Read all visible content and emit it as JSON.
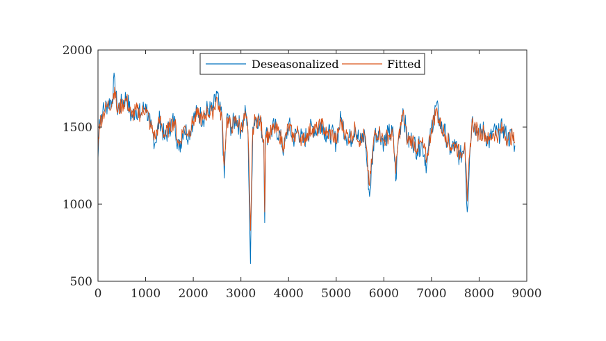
{
  "chart_data": {
    "type": "line",
    "title": "",
    "xlabel": "",
    "ylabel": "",
    "xlim": [
      0,
      9000
    ],
    "ylim": [
      500,
      2000
    ],
    "xticks": [
      0,
      1000,
      2000,
      3000,
      4000,
      5000,
      6000,
      7000,
      8000,
      9000
    ],
    "yticks": [
      500,
      1000,
      1500,
      2000
    ],
    "xtick_labels": [
      "0",
      "1000",
      "2000",
      "3000",
      "4000",
      "5000",
      "6000",
      "7000",
      "8000",
      "9000"
    ],
    "ytick_labels": [
      "500",
      "1000",
      "1500",
      "2000"
    ],
    "legend_position": "top-center",
    "colors": {
      "deseasonalized": "#0072BD",
      "fitted": "#D95319"
    },
    "series": [
      {
        "name": "Deseasonalized",
        "x": [
          0,
          30,
          100,
          200,
          300,
          350,
          400,
          500,
          600,
          700,
          800,
          900,
          1000,
          1100,
          1200,
          1300,
          1400,
          1500,
          1600,
          1700,
          1800,
          1900,
          2000,
          2100,
          2200,
          2300,
          2400,
          2500,
          2550,
          2600,
          2650,
          2700,
          2800,
          2900,
          3000,
          3100,
          3150,
          3200,
          3250,
          3300,
          3400,
          3480,
          3500,
          3520,
          3600,
          3700,
          3800,
          3900,
          4000,
          4100,
          4200,
          4300,
          4400,
          4500,
          4600,
          4700,
          4800,
          4900,
          5000,
          5100,
          5200,
          5300,
          5400,
          5500,
          5600,
          5700,
          5800,
          5900,
          6000,
          6100,
          6200,
          6250,
          6300,
          6400,
          6500,
          6600,
          6700,
          6800,
          6900,
          7000,
          7100,
          7200,
          7300,
          7400,
          7500,
          7600,
          7700,
          7750,
          7800,
          7850,
          7900,
          8000,
          8100,
          8200,
          8300,
          8400,
          8500,
          8600,
          8700,
          8750
        ],
        "values": [
          1300,
          1550,
          1600,
          1650,
          1680,
          1820,
          1620,
          1650,
          1700,
          1560,
          1620,
          1580,
          1650,
          1500,
          1400,
          1560,
          1420,
          1500,
          1550,
          1350,
          1500,
          1450,
          1550,
          1600,
          1550,
          1620,
          1600,
          1720,
          1600,
          1580,
          1170,
          1560,
          1500,
          1560,
          1480,
          1600,
          1450,
          615,
          1500,
          1560,
          1550,
          1400,
          880,
          1450,
          1450,
          1500,
          1460,
          1350,
          1520,
          1420,
          1480,
          1400,
          1460,
          1500,
          1480,
          1530,
          1450,
          1460,
          1400,
          1560,
          1450,
          1420,
          1500,
          1400,
          1450,
          1050,
          1450,
          1480,
          1400,
          1460,
          1450,
          1150,
          1400,
          1620,
          1400,
          1420,
          1350,
          1400,
          1250,
          1500,
          1640,
          1500,
          1450,
          1350,
          1380,
          1300,
          1400,
          950,
          1300,
          1550,
          1520,
          1450,
          1480,
          1400,
          1470,
          1450,
          1500,
          1420,
          1450,
          1380
        ]
      },
      {
        "name": "Fitted",
        "x": [
          0,
          30,
          100,
          200,
          300,
          350,
          400,
          500,
          600,
          700,
          800,
          900,
          1000,
          1100,
          1200,
          1300,
          1400,
          1500,
          1600,
          1700,
          1800,
          1900,
          2000,
          2100,
          2200,
          2300,
          2400,
          2500,
          2550,
          2600,
          2650,
          2700,
          2800,
          2900,
          3000,
          3100,
          3150,
          3200,
          3250,
          3300,
          3400,
          3480,
          3500,
          3520,
          3600,
          3700,
          3800,
          3900,
          4000,
          4100,
          4200,
          4300,
          4400,
          4500,
          4600,
          4700,
          4800,
          4900,
          5000,
          5100,
          5200,
          5300,
          5400,
          5500,
          5600,
          5700,
          5800,
          5900,
          6000,
          6100,
          6200,
          6250,
          6300,
          6400,
          6500,
          6600,
          6700,
          6800,
          6900,
          7000,
          7100,
          7200,
          7300,
          7400,
          7500,
          7600,
          7700,
          7750,
          7800,
          7850,
          7900,
          8000,
          8100,
          8200,
          8300,
          8400,
          8500,
          8600,
          8700,
          8750
        ],
        "values": [
          1350,
          1520,
          1580,
          1640,
          1660,
          1760,
          1600,
          1640,
          1680,
          1570,
          1610,
          1580,
          1630,
          1510,
          1430,
          1550,
          1440,
          1500,
          1540,
          1380,
          1500,
          1460,
          1540,
          1580,
          1550,
          1600,
          1590,
          1690,
          1600,
          1580,
          1250,
          1550,
          1500,
          1550,
          1490,
          1580,
          1460,
          830,
          1490,
          1550,
          1540,
          1420,
          950,
          1450,
          1450,
          1490,
          1460,
          1380,
          1510,
          1430,
          1470,
          1410,
          1460,
          1490,
          1480,
          1520,
          1450,
          1460,
          1410,
          1540,
          1450,
          1430,
          1490,
          1410,
          1450,
          1120,
          1450,
          1470,
          1410,
          1450,
          1440,
          1200,
          1410,
          1590,
          1410,
          1420,
          1360,
          1400,
          1290,
          1490,
          1610,
          1500,
          1450,
          1370,
          1390,
          1320,
          1400,
          1020,
          1320,
          1530,
          1510,
          1450,
          1470,
          1410,
          1460,
          1450,
          1490,
          1420,
          1440,
          1400
        ]
      }
    ]
  }
}
